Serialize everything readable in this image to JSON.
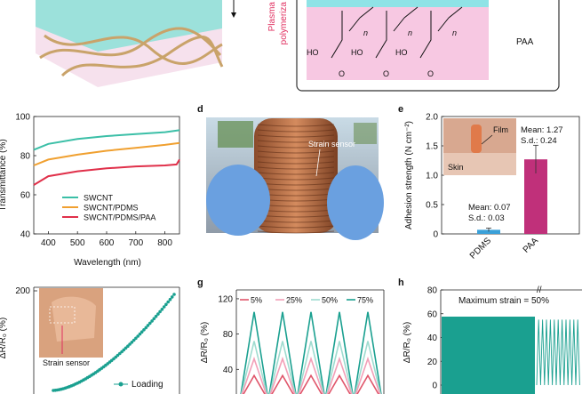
{
  "top": {
    "plasma_label_1": "Plasma",
    "plasma_label_2": "polymeriza",
    "paa_label": "PAA",
    "n_label": "n",
    "ho_label": "HO",
    "o_label": "O"
  },
  "colors": {
    "swcnt": "#3bbfa7",
    "swcnt_pdms": "#f0a030",
    "swcnt_pdms_paa": "#e0304a",
    "pdms_bar": "#3aa0d8",
    "paa_bar": "#c0307a",
    "teal": "#1aa090",
    "pink_bg": "#f7c8e2",
    "cyan_bg": "#8fe3e6"
  },
  "panels": {
    "d": {
      "letter": "d",
      "annotation": "Strain sensor"
    },
    "e": {
      "letter": "e",
      "film_label": "Film",
      "skin_label": "Skin"
    },
    "f": {
      "annotation": "Strain sensor",
      "legend": "Loading",
      "ytick_200": "200"
    },
    "g": {
      "letter": "g"
    },
    "h": {
      "letter": "h",
      "annotation": "Maximum strain = 50%"
    }
  },
  "chart_data": [
    {
      "id": "c",
      "type": "line",
      "xlabel": "Wavelength (nm)",
      "ylabel": "Transmittance (%)",
      "xlim": [
        350,
        850
      ],
      "ylim": [
        40,
        100
      ],
      "xticks": [
        "400",
        "500",
        "600",
        "700",
        "800"
      ],
      "yticks": [
        "40",
        "60",
        "80",
        "100"
      ],
      "series": [
        {
          "name": "SWCNT",
          "x": [
            350,
            400,
            500,
            600,
            700,
            800,
            850
          ],
          "y": [
            83,
            86,
            88.5,
            90,
            91,
            92,
            93
          ]
        },
        {
          "name": "SWCNT/PDMS",
          "x": [
            350,
            400,
            500,
            600,
            700,
            800,
            850
          ],
          "y": [
            75,
            78,
            80.5,
            82.5,
            84,
            85.5,
            86.5
          ]
        },
        {
          "name": "SWCNT/PDMS/PAA",
          "x": [
            350,
            400,
            500,
            600,
            700,
            800,
            840,
            850
          ],
          "y": [
            65,
            69.5,
            72,
            73.5,
            74.5,
            75,
            75.5,
            78
          ]
        }
      ]
    },
    {
      "id": "e",
      "type": "bar",
      "ylabel": "Adhesion strength (N cm⁻²)",
      "ylim": [
        0,
        2.0
      ],
      "yticks": [
        "0",
        "0.5",
        "1.0",
        "1.5",
        "2.0"
      ],
      "categories": [
        "PDMS",
        "PAA"
      ],
      "values": [
        0.07,
        1.27
      ],
      "errors": [
        0.03,
        0.24
      ],
      "annotations": [
        {
          "mean": "Mean: 0.07",
          "sd": "S.d.: 0.03"
        },
        {
          "mean": "Mean: 1.27",
          "sd": "S.d.: 0.24"
        }
      ]
    },
    {
      "id": "g",
      "type": "line",
      "ylabel": "ΔR/R₀ (%)",
      "ylim": [
        0,
        130
      ],
      "yticks": [
        "40",
        "80",
        "120"
      ],
      "cycles": 5,
      "series": [
        {
          "name": "5%",
          "peak": 33
        },
        {
          "name": "25%",
          "peak": 52
        },
        {
          "name": "50%",
          "peak": 72
        },
        {
          "name": "75%",
          "peak": 105
        }
      ]
    },
    {
      "id": "h",
      "type": "line",
      "ylabel": "ΔR/R₀ (%)",
      "ylim": [
        0,
        80
      ],
      "yticks": [
        "0",
        "20",
        "40",
        "60",
        "80"
      ],
      "band_level": 55
    }
  ]
}
